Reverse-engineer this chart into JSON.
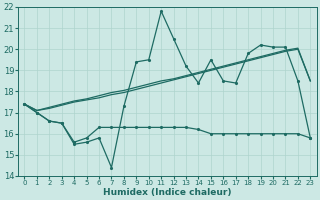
{
  "xlabel": "Humidex (Indice chaleur)",
  "xlim": [
    -0.5,
    23.5
  ],
  "ylim": [
    14,
    22
  ],
  "yticks": [
    14,
    15,
    16,
    17,
    18,
    19,
    20,
    21,
    22
  ],
  "xticks": [
    0,
    1,
    2,
    3,
    4,
    5,
    6,
    7,
    8,
    9,
    10,
    11,
    12,
    13,
    14,
    15,
    16,
    17,
    18,
    19,
    20,
    21,
    22,
    23
  ],
  "bg_color": "#cce8e4",
  "line_color": "#1e6b63",
  "grid_color": "#afd4ce",
  "line1_y": [
    17.4,
    17.0,
    16.6,
    16.5,
    15.5,
    15.6,
    15.8,
    14.4,
    17.3,
    19.4,
    19.5,
    21.8,
    20.5,
    19.2,
    18.4,
    19.5,
    18.5,
    18.4,
    19.8,
    20.2,
    20.1,
    20.1,
    18.5,
    15.8
  ],
  "line2_y": [
    17.4,
    17.0,
    16.6,
    16.5,
    15.6,
    15.8,
    16.3,
    16.3,
    16.3,
    16.3,
    16.3,
    16.3,
    16.3,
    16.3,
    16.2,
    16.0,
    16.0,
    16.0,
    16.0,
    16.0,
    16.0,
    16.0,
    16.0,
    15.8
  ],
  "line3_y": [
    17.4,
    17.1,
    17.2,
    17.35,
    17.5,
    17.6,
    17.7,
    17.85,
    17.95,
    18.1,
    18.25,
    18.4,
    18.55,
    18.7,
    18.85,
    19.0,
    19.15,
    19.3,
    19.45,
    19.6,
    19.75,
    19.9,
    20.0,
    18.5
  ],
  "line4_y": [
    17.4,
    17.1,
    17.25,
    17.4,
    17.55,
    17.65,
    17.8,
    17.95,
    18.05,
    18.2,
    18.35,
    18.5,
    18.6,
    18.75,
    18.9,
    19.05,
    19.2,
    19.35,
    19.5,
    19.65,
    19.8,
    19.95,
    20.05,
    18.5
  ]
}
